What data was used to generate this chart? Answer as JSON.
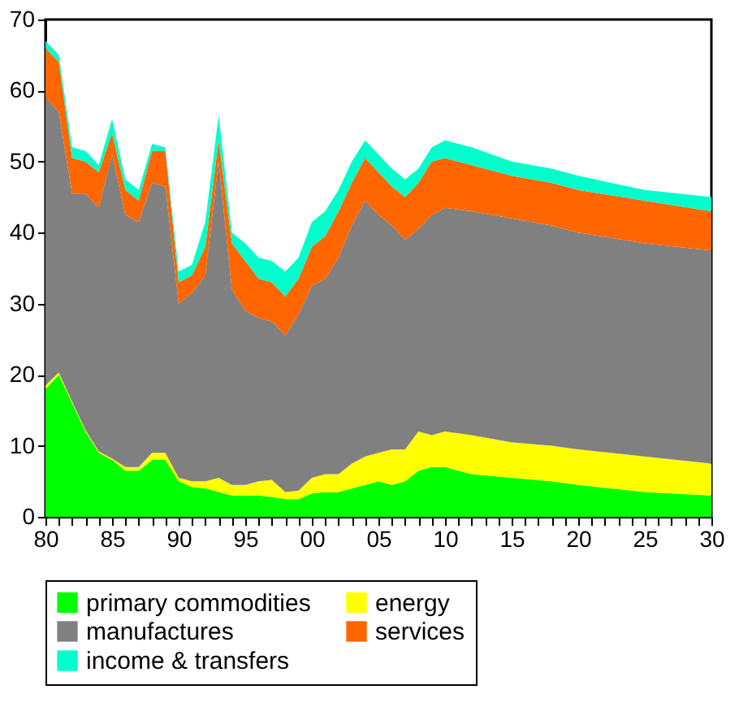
{
  "chart_data": {
    "type": "area",
    "stacked": true,
    "x": [
      1980,
      1981,
      1982,
      1983,
      1984,
      1985,
      1986,
      1987,
      1988,
      1989,
      1990,
      1991,
      1992,
      1993,
      1994,
      1995,
      1996,
      1997,
      1998,
      1999,
      2000,
      2001,
      2002,
      2003,
      2004,
      2005,
      2006,
      2007,
      2008,
      2009,
      2010,
      2012,
      2015,
      2018,
      2020,
      2025,
      2030
    ],
    "series": [
      {
        "name": "primary commodities",
        "color": "#00ff00",
        "values": [
          18,
          20,
          16,
          12,
          9,
          8,
          6.5,
          6.5,
          8,
          8,
          5,
          4.2,
          4,
          3.5,
          3,
          3,
          3,
          2.8,
          2.5,
          2.5,
          3.3,
          3.5,
          3.5,
          4,
          4.5,
          5,
          4.5,
          5,
          6.5,
          7,
          7,
          6,
          5.5,
          5,
          4.5,
          3.5,
          3
        ]
      },
      {
        "name": "energy",
        "color": "#ffff00",
        "values": [
          0.5,
          0.3,
          0.2,
          0.2,
          0.2,
          0.2,
          0.5,
          0.5,
          1,
          1,
          0.5,
          0.8,
          1,
          2,
          1.5,
          1.5,
          2,
          2.4,
          1,
          1.2,
          2.2,
          2.5,
          2.5,
          3.5,
          4,
          4,
          5,
          4.5,
          5.5,
          4.5,
          5,
          5.5,
          5,
          5,
          5,
          5,
          4.5
        ]
      },
      {
        "name": "manufactures",
        "color": "#808080",
        "values": [
          40.5,
          36.7,
          29.3,
          33.3,
          34.3,
          42.8,
          35.5,
          34.5,
          38,
          37.5,
          24.5,
          26.5,
          29,
          44.5,
          27.5,
          24.5,
          23,
          22.3,
          22,
          24.8,
          27,
          27.5,
          30.5,
          33.5,
          36,
          33.5,
          31.5,
          29.5,
          28.5,
          31,
          31.5,
          31.5,
          31.5,
          31,
          30.5,
          30,
          30
        ]
      },
      {
        "name": "services",
        "color": "#ff6600",
        "values": [
          7,
          7,
          5,
          4.5,
          5,
          3,
          3.5,
          3,
          4.5,
          5,
          3,
          2.5,
          4,
          3,
          6.5,
          7,
          5.5,
          5.5,
          5.5,
          5,
          5.5,
          6,
          6.5,
          6,
          6,
          6,
          5.5,
          6,
          6.5,
          7.5,
          7,
          6.5,
          6,
          6,
          6,
          6,
          5.5
        ]
      },
      {
        "name": "income & transfers",
        "color": "#00ffcc",
        "values": [
          1,
          1,
          1.5,
          1.5,
          1,
          2,
          1.5,
          1.5,
          1,
          0.5,
          1.5,
          1.5,
          3.5,
          3.5,
          1.5,
          2.5,
          3,
          3,
          3.5,
          3,
          3.5,
          3.5,
          3,
          3,
          2.5,
          2.5,
          2.5,
          2.5,
          2,
          2,
          2.5,
          2.5,
          2,
          2,
          2,
          1.5,
          2
        ]
      }
    ],
    "xlim": [
      1980,
      2030
    ],
    "xticks": [
      {
        "value": 1980,
        "label": "80"
      },
      {
        "value": 1981,
        "label": null
      },
      {
        "value": 1982,
        "label": null
      },
      {
        "value": 1983,
        "label": null
      },
      {
        "value": 1984,
        "label": null
      },
      {
        "value": 1985,
        "label": "85"
      },
      {
        "value": 1986,
        "label": null
      },
      {
        "value": 1987,
        "label": null
      },
      {
        "value": 1988,
        "label": null
      },
      {
        "value": 1989,
        "label": null
      },
      {
        "value": 1990,
        "label": "90"
      },
      {
        "value": 1991,
        "label": null
      },
      {
        "value": 1992,
        "label": null
      },
      {
        "value": 1993,
        "label": null
      },
      {
        "value": 1994,
        "label": null
      },
      {
        "value": 1995,
        "label": "95"
      },
      {
        "value": 1996,
        "label": null
      },
      {
        "value": 1997,
        "label": null
      },
      {
        "value": 1998,
        "label": null
      },
      {
        "value": 1999,
        "label": null
      },
      {
        "value": 2000,
        "label": "00"
      },
      {
        "value": 2001,
        "label": null
      },
      {
        "value": 2002,
        "label": null
      },
      {
        "value": 2003,
        "label": null
      },
      {
        "value": 2004,
        "label": null
      },
      {
        "value": 2005,
        "label": "05"
      },
      {
        "value": 2006,
        "label": null
      },
      {
        "value": 2007,
        "label": null
      },
      {
        "value": 2008,
        "label": null
      },
      {
        "value": 2009,
        "label": null
      },
      {
        "value": 2010,
        "label": "10"
      },
      {
        "value": 2011,
        "label": null
      },
      {
        "value": 2012,
        "label": null
      },
      {
        "value": 2013,
        "label": null
      },
      {
        "value": 2014,
        "label": null
      },
      {
        "value": 2015,
        "label": "15"
      },
      {
        "value": 2016,
        "label": null
      },
      {
        "value": 2017,
        "label": null
      },
      {
        "value": 2018,
        "label": null
      },
      {
        "value": 2019,
        "label": null
      },
      {
        "value": 2020,
        "label": "20"
      },
      {
        "value": 2021,
        "label": null
      },
      {
        "value": 2022,
        "label": null
      },
      {
        "value": 2023,
        "label": null
      },
      {
        "value": 2024,
        "label": null
      },
      {
        "value": 2025,
        "label": "25"
      },
      {
        "value": 2026,
        "label": null
      },
      {
        "value": 2027,
        "label": null
      },
      {
        "value": 2028,
        "label": null
      },
      {
        "value": 2029,
        "label": null
      },
      {
        "value": 2030,
        "label": "30"
      }
    ],
    "ylim": [
      0,
      70
    ],
    "yticks": [
      0,
      10,
      20,
      30,
      40,
      50,
      60,
      70
    ],
    "grid": false,
    "legend": "bottom"
  }
}
